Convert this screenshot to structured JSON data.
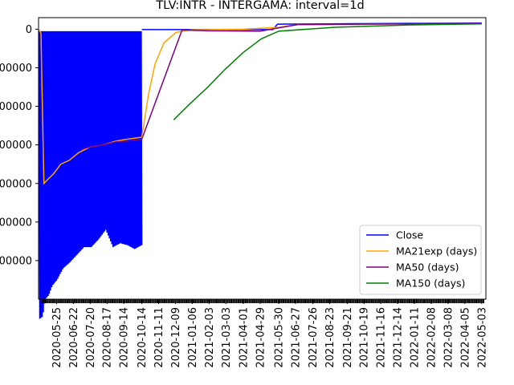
{
  "chart_data": {
    "type": "line",
    "title": "TLV:INTR - INTERGAMA: interval=1d",
    "xlabel": "",
    "ylabel": "",
    "y_tick_labels": [
      "0",
      "00000",
      "00000",
      "00000",
      "00000",
      "00000",
      "00000"
    ],
    "y_ticks": [
      0,
      -100000,
      -200000,
      -300000,
      -400000,
      -500000,
      -600000
    ],
    "ylim": [
      -700000,
      30000
    ],
    "x_tick_labels": [
      "2020-05-25",
      "2020-06-22",
      "2020-07-20",
      "2020-08-17",
      "2020-09-14",
      "2020-10-14",
      "2020-11-11",
      "2020-12-09",
      "2021-01-06",
      "2021-02-03",
      "2021-03-03",
      "2021-04-01",
      "2021-04-29",
      "2021-05-30",
      "2021-06-27",
      "2021-07-26",
      "2021-08-23",
      "2021-09-21",
      "2021-10-19",
      "2021-11-16",
      "2021-12-14",
      "2022-01-11",
      "2022-02-08",
      "2022-03-08",
      "2022-04-05",
      "2022-05-03"
    ],
    "x_start": "2020-04-25",
    "x_end": "2022-05-10",
    "grid": false,
    "legend_position": "lower-right",
    "series": [
      {
        "name": "Close",
        "color": "#0000ff",
        "note": "oscillating between a high band near -5000 and a low envelope until 2020-10-14, flat afterwards",
        "high_band": [
          [
            "2020-04-26",
            -5000
          ],
          [
            "2020-10-14",
            -5000
          ]
        ],
        "low_envelope": [
          [
            "2020-04-26",
            -752000
          ],
          [
            "2020-05-02",
            -745000
          ],
          [
            "2020-05-06",
            -700000
          ],
          [
            "2020-05-12",
            -690000
          ],
          [
            "2020-05-18",
            -665000
          ],
          [
            "2020-05-26",
            -650000
          ],
          [
            "2020-06-05",
            -620000
          ],
          [
            "2020-06-16",
            -605000
          ],
          [
            "2020-06-28",
            -585000
          ],
          [
            "2020-07-10",
            -565000
          ],
          [
            "2020-07-22",
            -565000
          ],
          [
            "2020-08-03",
            -545000
          ],
          [
            "2020-08-15",
            -520000
          ],
          [
            "2020-08-27",
            -565000
          ],
          [
            "2020-09-08",
            -555000
          ],
          [
            "2020-09-20",
            -560000
          ],
          [
            "2020-10-02",
            -570000
          ],
          [
            "2020-10-14",
            -560000
          ]
        ],
        "after": [
          [
            "2020-10-14",
            -1000
          ],
          [
            "2021-01-01",
            -1000
          ],
          [
            "2021-05-20",
            -1000
          ],
          [
            "2021-05-28",
            13000
          ],
          [
            "2021-12-01",
            15000
          ],
          [
            "2022-05-03",
            16000
          ]
        ]
      },
      {
        "name": "MA21exp (days)",
        "color": "#ffa500",
        "values": [
          [
            "2020-04-26",
            -2000
          ],
          [
            "2020-04-29",
            -10000
          ],
          [
            "2020-05-02",
            -250000
          ],
          [
            "2020-05-04",
            -400000
          ],
          [
            "2020-05-10",
            -390000
          ],
          [
            "2020-05-20",
            -375000
          ],
          [
            "2020-06-01",
            -350000
          ],
          [
            "2020-06-15",
            -340000
          ],
          [
            "2020-07-01",
            -320000
          ],
          [
            "2020-07-20",
            -305000
          ],
          [
            "2020-08-10",
            -300000
          ],
          [
            "2020-09-01",
            -290000
          ],
          [
            "2020-09-20",
            -285000
          ],
          [
            "2020-10-14",
            -280000
          ],
          [
            "2020-10-25",
            -170000
          ],
          [
            "2020-11-05",
            -90000
          ],
          [
            "2020-11-20",
            -35000
          ],
          [
            "2020-12-10",
            -8000
          ],
          [
            "2021-01-06",
            -1500
          ],
          [
            "2021-04-01",
            0
          ],
          [
            "2021-05-30",
            5000
          ],
          [
            "2021-07-01",
            12000
          ],
          [
            "2022-05-03",
            15000
          ]
        ]
      },
      {
        "name": "MA50 (days)",
        "color": "#800080",
        "values": [
          [
            "2020-07-05",
            -312000
          ],
          [
            "2020-07-20",
            -305000
          ],
          [
            "2020-08-10",
            -300000
          ],
          [
            "2020-09-01",
            -292000
          ],
          [
            "2020-09-20",
            -290000
          ],
          [
            "2020-10-14",
            -285000
          ],
          [
            "2020-12-20",
            -2000
          ],
          [
            "2021-02-01",
            -4000
          ],
          [
            "2021-04-29",
            -5000
          ],
          [
            "2021-05-28",
            3000
          ],
          [
            "2021-07-01",
            12000
          ],
          [
            "2022-05-03",
            15000
          ]
        ]
      },
      {
        "name": "MA150 (days)",
        "color": "#008000",
        "values": [
          [
            "2020-12-06",
            -235000
          ],
          [
            "2021-01-01",
            -195000
          ],
          [
            "2021-02-01",
            -150000
          ],
          [
            "2021-03-01",
            -105000
          ],
          [
            "2021-04-01",
            -60000
          ],
          [
            "2021-05-01",
            -25000
          ],
          [
            "2021-05-30",
            -5000
          ],
          [
            "2021-09-01",
            5000
          ],
          [
            "2022-01-01",
            11000
          ],
          [
            "2022-05-03",
            14000
          ]
        ]
      }
    ]
  }
}
